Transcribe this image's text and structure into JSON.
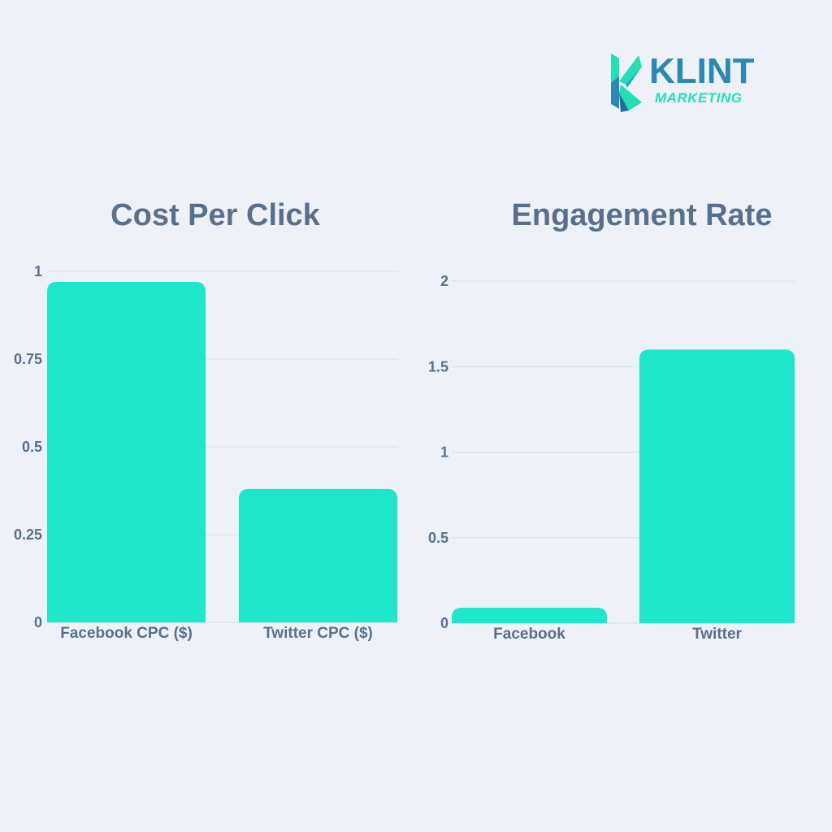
{
  "logo": {
    "name": "KLINT",
    "subtitle": "MARKETING",
    "colors": {
      "teal": "#22e0b4",
      "blue": "#2a88b5"
    }
  },
  "colors": {
    "background": "#eef2f8",
    "bar": "#1de6cb",
    "text": "#56708e",
    "grid": "#d3dceb"
  },
  "chart_data": [
    {
      "type": "bar",
      "title": "Cost Per Click",
      "categories": [
        "Facebook CPC ($)",
        "Twitter CPC ($)"
      ],
      "values": [
        0.97,
        0.38
      ],
      "ylim": [
        0,
        1
      ],
      "yticks": [
        0,
        0.25,
        0.5,
        0.75,
        1
      ],
      "ytick_labels": [
        "0",
        "0.25",
        "0.5",
        "0.75",
        "1"
      ],
      "grid": true
    },
    {
      "type": "bar",
      "title": "Engagement Rate",
      "categories": [
        "Facebook",
        "Twitter"
      ],
      "values": [
        0.09,
        1.6
      ],
      "ylim": [
        0,
        2
      ],
      "yticks": [
        0,
        0.5,
        1,
        1.5,
        2
      ],
      "ytick_labels": [
        "0",
        "0.5",
        "1",
        "1.5",
        "2"
      ],
      "grid": true
    }
  ]
}
